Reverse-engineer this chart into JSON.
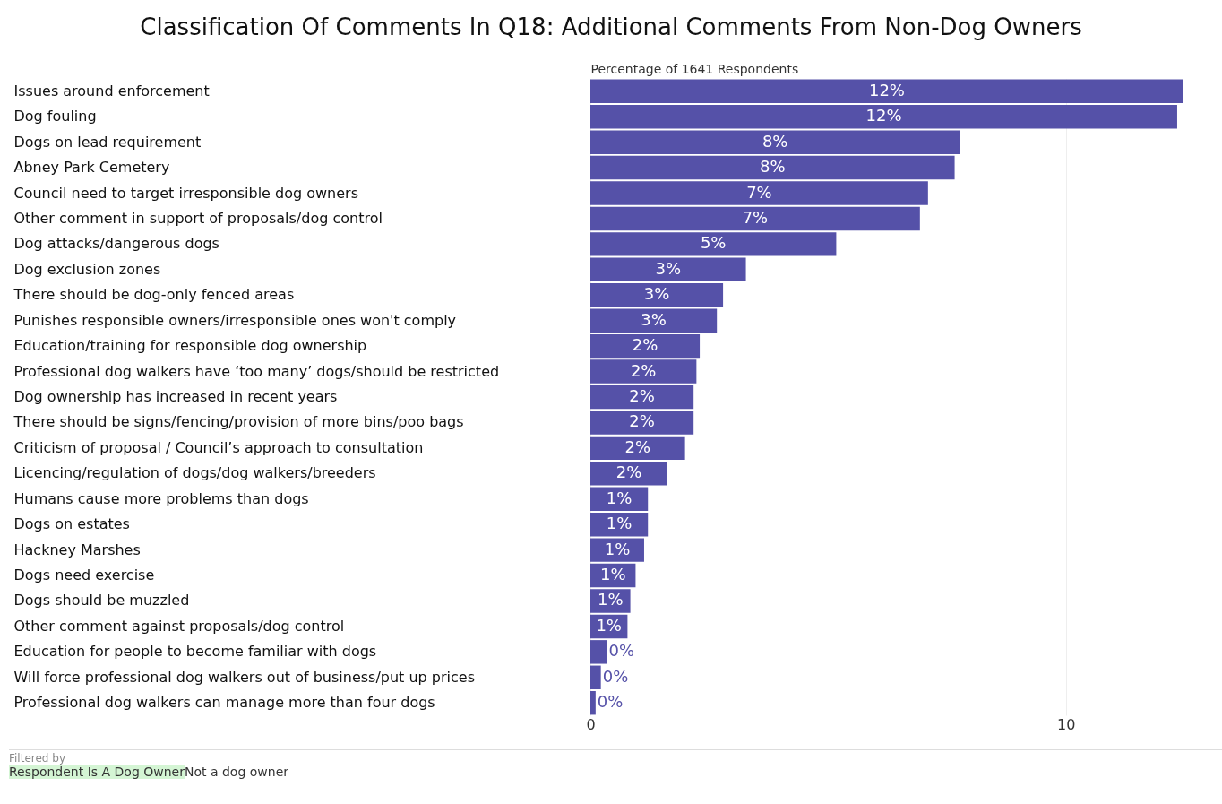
{
  "chart_data": {
    "type": "bar",
    "orientation": "horizontal",
    "title": "Classification Of Comments In Q18: Additional Comments From Non-Dog Owners",
    "xlabel": "Percentage of 1641 Respondents",
    "categories": [
      "Issues around enforcement",
      "Dog fouling",
      "Dogs on lead requirement",
      "Abney Park Cemetery",
      "Council need to target irresponsible dog owners",
      "Other comment in support of proposals/dog control",
      "Dog attacks/dangerous dogs",
      "Dog exclusion zones",
      "There should be dog-only fenced areas",
      "Punishes responsible owners/irresponsible ones won't comply",
      "Education/training for responsible dog ownership",
      "Professional dog walkers have ‘too many’ dogs/should be restricted",
      "Dog ownership has increased in recent years",
      "There should be signs/fencing/provision of more bins/poo bags",
      "Criticism of proposal / Council’s approach to consultation",
      "Licencing/regulation of dogs/dog walkers/breeders",
      "Humans cause more problems than dogs",
      "Dogs on estates",
      "Hackney Marshes",
      "Dogs need exercise",
      "Dogs should be muzzled",
      "Other comment against proposals/dog control",
      "Education for people to become familiar with dogs",
      "Will force professional dog walkers out of business/put up prices",
      "Professional dog walkers can manage more than four dogs"
    ],
    "values": [
      12.47,
      12.34,
      7.77,
      7.66,
      7.1,
      6.93,
      5.17,
      3.27,
      2.79,
      2.66,
      2.3,
      2.23,
      2.17,
      2.17,
      1.99,
      1.62,
      1.21,
      1.21,
      1.13,
      0.95,
      0.84,
      0.78,
      0.35,
      0.22,
      0.11
    ],
    "value_labels": [
      "12%",
      "12%",
      "8%",
      "8%",
      "7%",
      "7%",
      "5%",
      "3%",
      "3%",
      "3%",
      "2%",
      "2%",
      "2%",
      "2%",
      "2%",
      "2%",
      "1%",
      "1%",
      "1%",
      "1%",
      "1%",
      "1%",
      "0%",
      "0%",
      "0%"
    ],
    "color": "#5551a8",
    "xlim": [
      0,
      13
    ],
    "xticks": [
      0,
      10
    ],
    "grid": "x",
    "annotations": [
      "Filtered by",
      "Respondent Is A Dog Owner",
      "Not a dog owner"
    ]
  }
}
